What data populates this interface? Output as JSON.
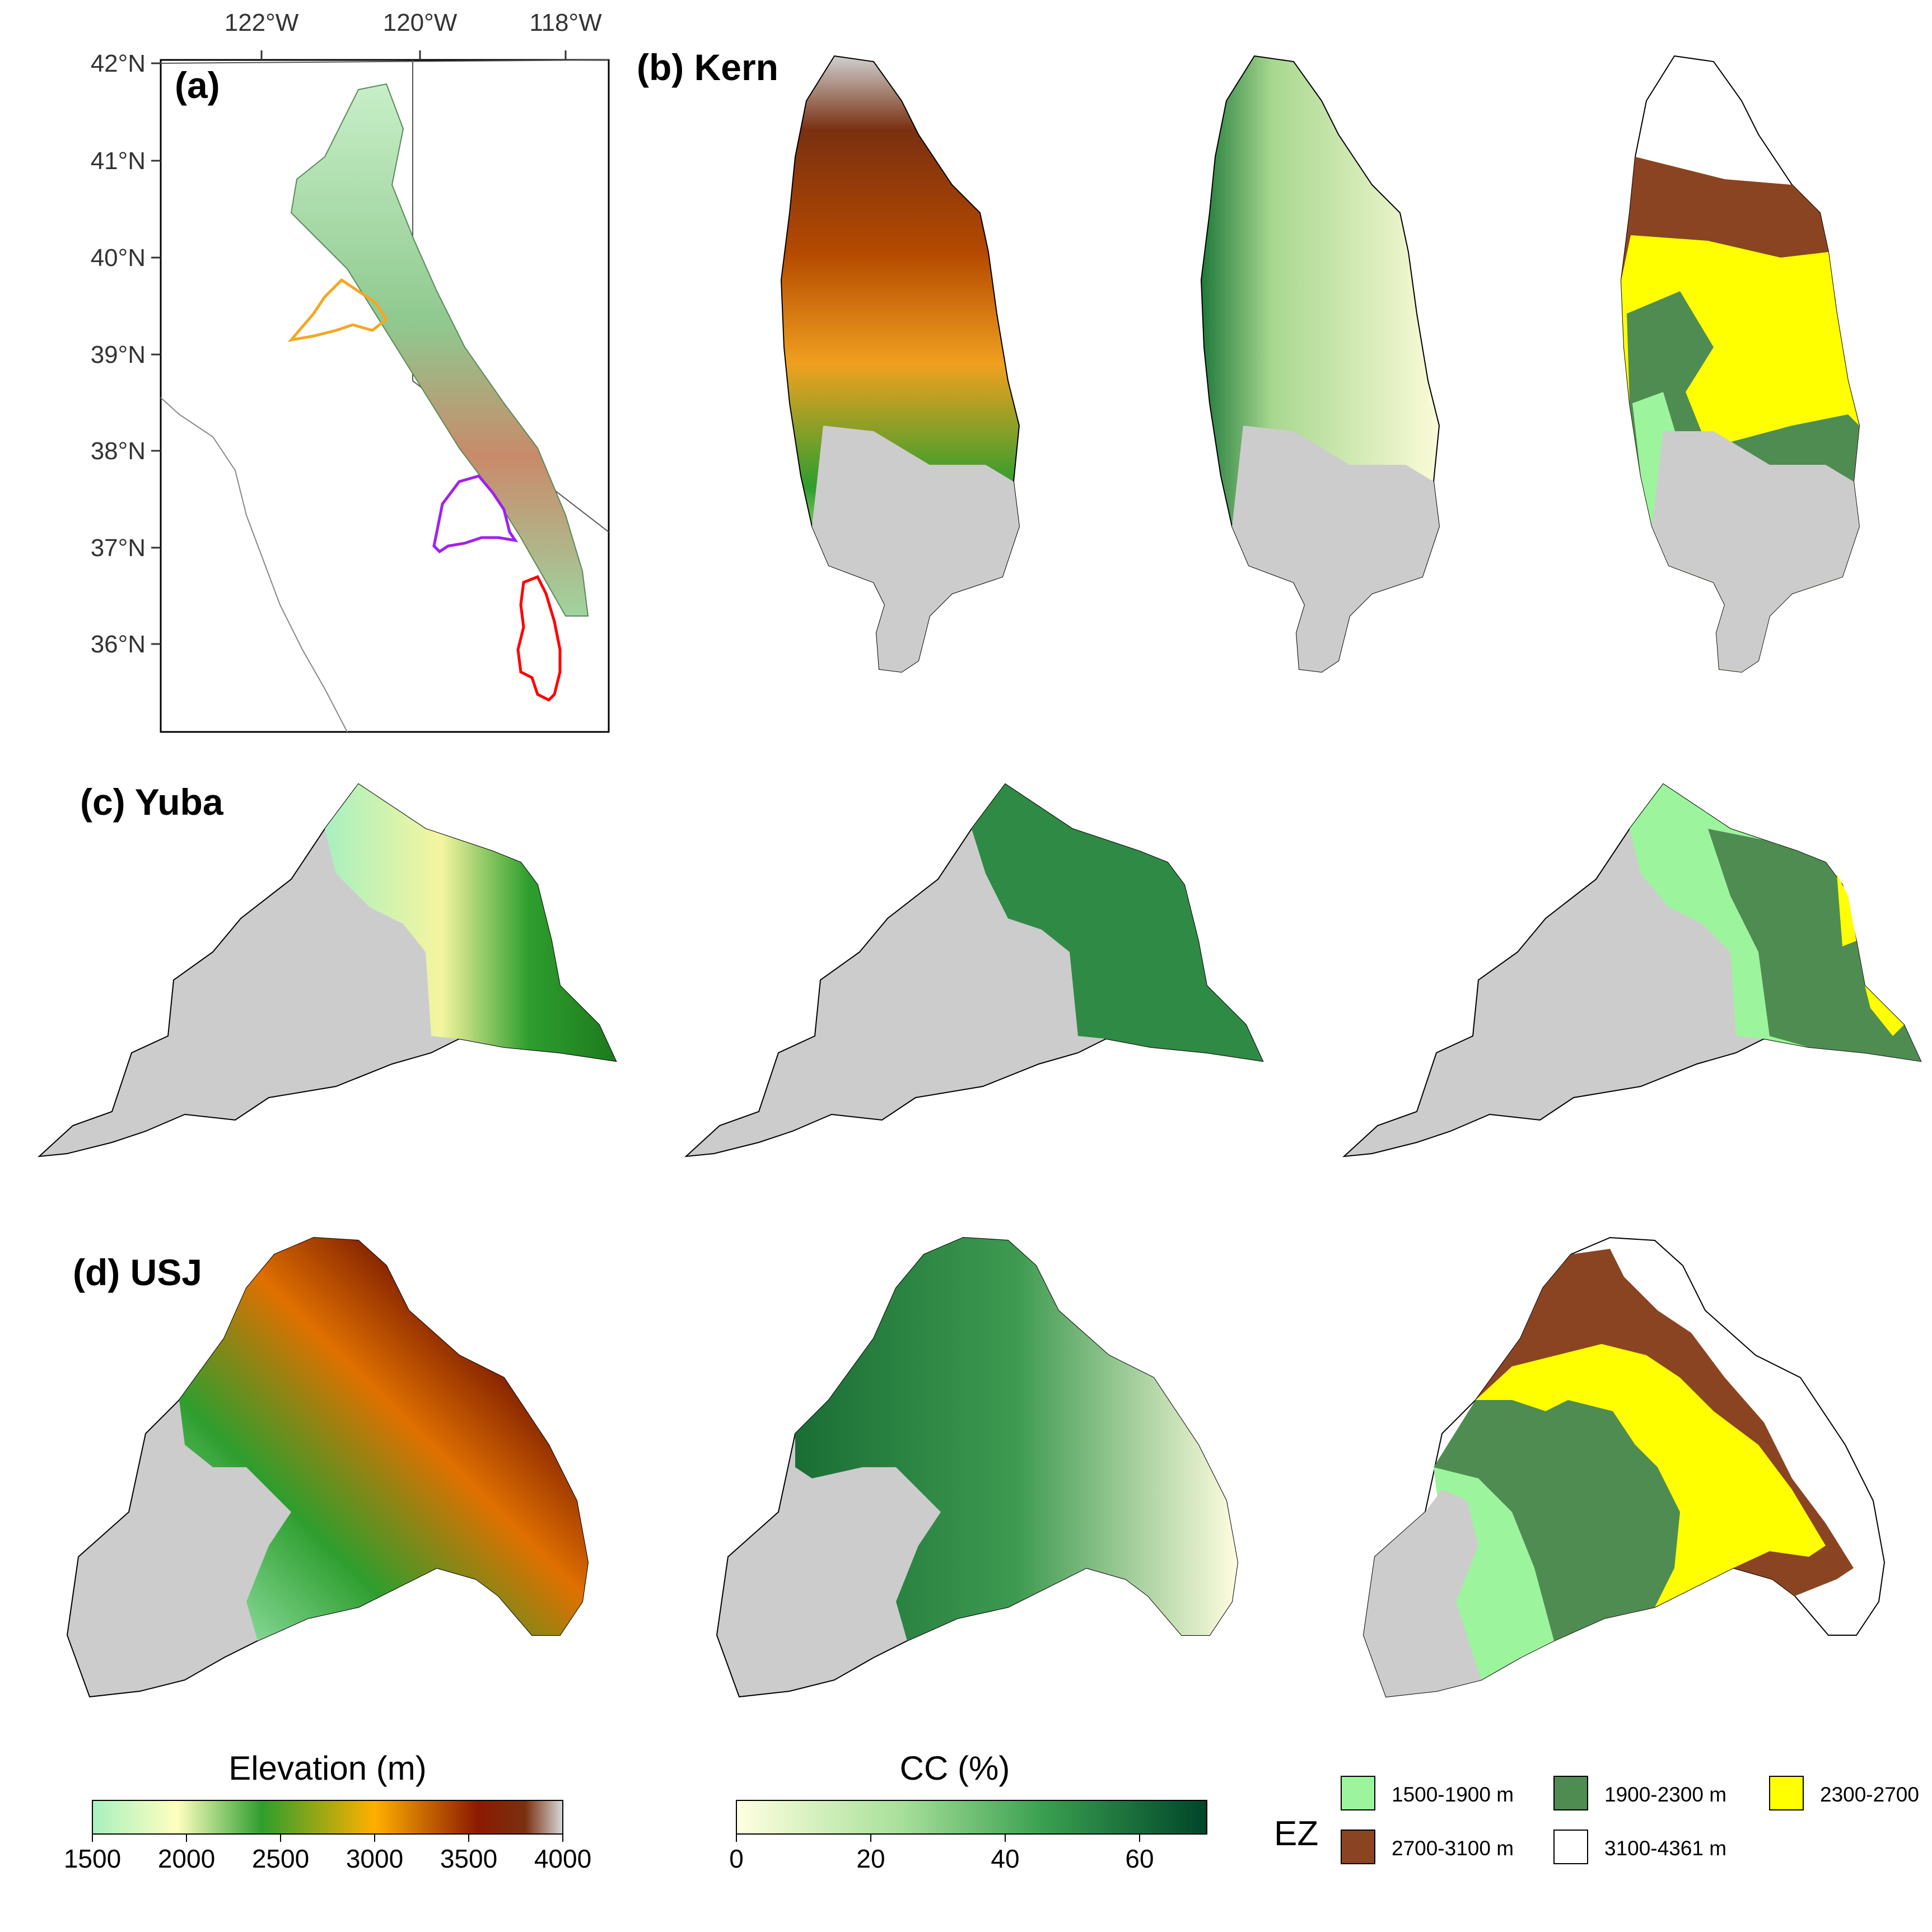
{
  "panels": {
    "a": {
      "label": "(a)"
    },
    "b": {
      "label": "(b) Kern"
    },
    "c": {
      "label": "(c) Yuba"
    },
    "d": {
      "label": "(d) USJ"
    }
  },
  "overview_map": {
    "lon_ticks": [
      "122°W",
      "120°W",
      "118°W"
    ],
    "lat_ticks": [
      "42°N",
      "41°N",
      "40°N",
      "39°N",
      "38°N",
      "37°N",
      "36°N"
    ],
    "basin_outline_colors": {
      "yuba": "#f5a623",
      "usj": "#a020f0",
      "kern": "#ff0000"
    }
  },
  "legend_elevation": {
    "title": "Elevation (m)",
    "ticks": [
      "1500",
      "2000",
      "2500",
      "3000",
      "3500",
      "4000"
    ],
    "range": [
      1500,
      4000
    ],
    "stops": [
      "#a8f0c0",
      "#ffffc0",
      "#2e9e2e",
      "#ffb000",
      "#8b1a00",
      "#7a3010",
      "#d8d8d8"
    ]
  },
  "legend_cc": {
    "title": "CC (%)",
    "ticks": [
      "0",
      "20",
      "40",
      "60"
    ],
    "range": [
      0,
      70
    ],
    "stops": [
      "#ffffe0",
      "#a8e09a",
      "#3aa050",
      "#00452a"
    ]
  },
  "legend_ez": {
    "title": "EZ",
    "items": [
      {
        "label": "1500-1900 m",
        "color": "#9cf59c"
      },
      {
        "label": "1900-2300 m",
        "color": "#4f8c52"
      },
      {
        "label": "2300-2700",
        "color": "#ffff00"
      },
      {
        "label": "2700-3100 m",
        "color": "#8b4422"
      },
      {
        "label": "3100-4361 m",
        "color": "#ffffff"
      }
    ]
  },
  "colors": {
    "masked": "#cccccc",
    "outline": "#000000"
  }
}
